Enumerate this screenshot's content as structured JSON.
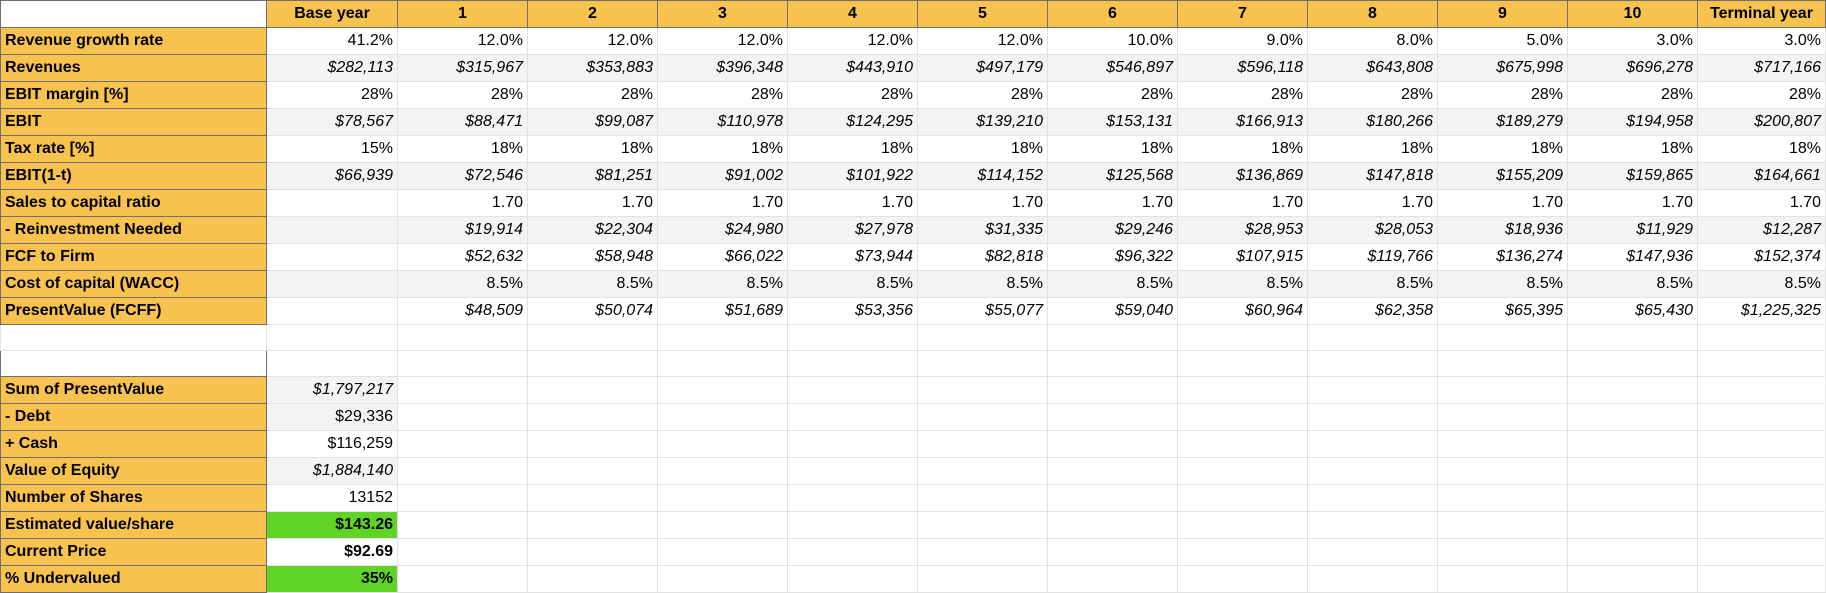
{
  "headers": [
    "",
    "Base year",
    "1",
    "2",
    "3",
    "4",
    "5",
    "6",
    "7",
    "8",
    "9",
    "10",
    "Terminal year"
  ],
  "projection_rows": [
    {
      "label": "Revenue growth rate",
      "italic": false,
      "base": "41.2%",
      "values": [
        "12.0%",
        "12.0%",
        "12.0%",
        "12.0%",
        "12.0%",
        "10.0%",
        "9.0%",
        "8.0%",
        "5.0%",
        "3.0%",
        "3.0%"
      ]
    },
    {
      "label": "Revenues",
      "italic": true,
      "base": "$282,113",
      "values": [
        "$315,967",
        "$353,883",
        "$396,348",
        "$443,910",
        "$497,179",
        "$546,897",
        "$596,118",
        "$643,808",
        "$675,998",
        "$696,278",
        "$717,166"
      ]
    },
    {
      "label": "EBIT margin [%]",
      "italic": false,
      "base": "28%",
      "values": [
        "28%",
        "28%",
        "28%",
        "28%",
        "28%",
        "28%",
        "28%",
        "28%",
        "28%",
        "28%",
        "28%"
      ]
    },
    {
      "label": "EBIT",
      "italic": true,
      "base": "$78,567",
      "values": [
        "$88,471",
        "$99,087",
        "$110,978",
        "$124,295",
        "$139,210",
        "$153,131",
        "$166,913",
        "$180,266",
        "$189,279",
        "$194,958",
        "$200,807"
      ]
    },
    {
      "label": "Tax rate [%]",
      "italic": false,
      "base": "15%",
      "values": [
        "18%",
        "18%",
        "18%",
        "18%",
        "18%",
        "18%",
        "18%",
        "18%",
        "18%",
        "18%",
        "18%"
      ]
    },
    {
      "label": "EBIT(1-t)",
      "italic": true,
      "base": "$66,939",
      "values": [
        "$72,546",
        "$81,251",
        "$91,002",
        "$101,922",
        "$114,152",
        "$125,568",
        "$136,869",
        "$147,818",
        "$155,209",
        "$159,865",
        "$164,661"
      ]
    },
    {
      "label": "Sales to capital ratio",
      "italic": false,
      "base": "",
      "values": [
        "1.70",
        "1.70",
        "1.70",
        "1.70",
        "1.70",
        "1.70",
        "1.70",
        "1.70",
        "1.70",
        "1.70",
        "1.70"
      ]
    },
    {
      "label": "- Reinvestment Needed",
      "italic": true,
      "base": "",
      "values": [
        "$19,914",
        "$22,304",
        "$24,980",
        "$27,978",
        "$31,335",
        "$29,246",
        "$28,953",
        "$28,053",
        "$18,936",
        "$11,929",
        "$12,287"
      ]
    },
    {
      "label": "FCF to Firm",
      "italic": true,
      "base": "",
      "values": [
        "$52,632",
        "$58,948",
        "$66,022",
        "$73,944",
        "$82,818",
        "$96,322",
        "$107,915",
        "$119,766",
        "$136,274",
        "$147,936",
        "$152,374"
      ]
    },
    {
      "label": "Cost of capital (WACC)",
      "italic": false,
      "base": "",
      "values": [
        "8.5%",
        "8.5%",
        "8.5%",
        "8.5%",
        "8.5%",
        "8.5%",
        "8.5%",
        "8.5%",
        "8.5%",
        "8.5%",
        "8.5%"
      ]
    },
    {
      "label": "PresentValue (FCFF)",
      "italic": true,
      "base": "",
      "values": [
        "$48,509",
        "$50,074",
        "$51,689",
        "$53,356",
        "$55,077",
        "$59,040",
        "$60,964",
        "$62,358",
        "$65,395",
        "$65,430",
        "$1,225,325"
      ]
    }
  ],
  "summary_rows": [
    {
      "label": "Sum of PresentValue",
      "value": "$1,797,217",
      "style": "italic"
    },
    {
      "label": " - Debt",
      "value": "$29,336",
      "style": "plain"
    },
    {
      "label": " + Cash",
      "value": "$116,259",
      "style": "plain"
    },
    {
      "label": "Value of Equity",
      "value": "$1,884,140",
      "style": "italic"
    },
    {
      "label": "Number of Shares",
      "value": "13152",
      "style": "plain"
    },
    {
      "label": "Estimated value/share",
      "value": "$143.26",
      "style": "green"
    },
    {
      "label": "Current Price",
      "value": "$92.69",
      "style": "bold"
    },
    {
      "label": "% Undervalued",
      "value": "35%",
      "style": "green"
    }
  ]
}
